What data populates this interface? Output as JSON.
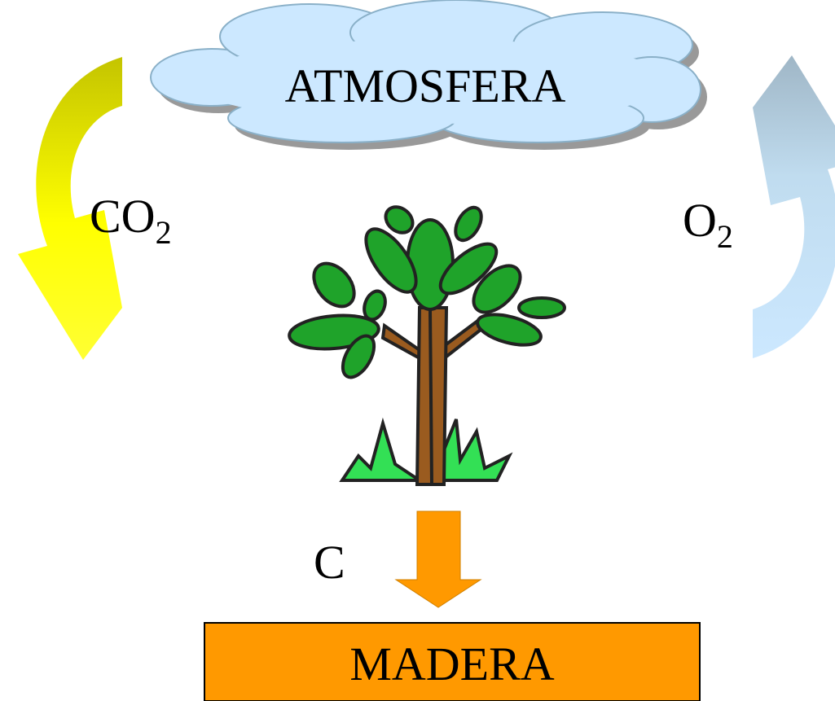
{
  "title": "ATMOSFERA",
  "labels": [
    {
      "text": "CO",
      "subscript": "2"
    },
    {
      "text": "O",
      "subscript": "2"
    },
    {
      "text": "C"
    }
  ],
  "box": "MADERA"
}
